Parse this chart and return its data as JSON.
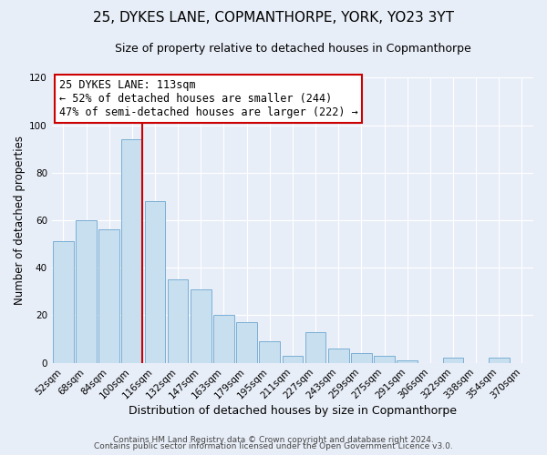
{
  "title": "25, DYKES LANE, COPMANTHORPE, YORK, YO23 3YT",
  "subtitle": "Size of property relative to detached houses in Copmanthorpe",
  "xlabel": "Distribution of detached houses by size in Copmanthorpe",
  "ylabel": "Number of detached properties",
  "bar_color": "#c8dff0",
  "bar_edge_color": "#7bafd4",
  "categories": [
    "52sqm",
    "68sqm",
    "84sqm",
    "100sqm",
    "116sqm",
    "132sqm",
    "147sqm",
    "163sqm",
    "179sqm",
    "195sqm",
    "211sqm",
    "227sqm",
    "243sqm",
    "259sqm",
    "275sqm",
    "291sqm",
    "306sqm",
    "322sqm",
    "338sqm",
    "354sqm",
    "370sqm"
  ],
  "values": [
    51,
    60,
    56,
    94,
    68,
    35,
    31,
    20,
    17,
    9,
    3,
    13,
    6,
    4,
    3,
    1,
    0,
    2,
    0,
    2,
    0
  ],
  "ylim": [
    0,
    120
  ],
  "yticks": [
    0,
    20,
    40,
    60,
    80,
    100,
    120
  ],
  "vline_color": "#cc0000",
  "annotation_line1": "25 DYKES LANE: 113sqm",
  "annotation_line2": "← 52% of detached houses are smaller (244)",
  "annotation_line3": "47% of semi-detached houses are larger (222) →",
  "footer1": "Contains HM Land Registry data © Crown copyright and database right 2024.",
  "footer2": "Contains public sector information licensed under the Open Government Licence v3.0.",
  "bg_color": "#e8eef8",
  "plot_bg_color": "#e8eef8",
  "grid_color": "#ffffff",
  "title_fontsize": 11,
  "subtitle_fontsize": 9,
  "xlabel_fontsize": 9,
  "ylabel_fontsize": 8.5,
  "tick_fontsize": 7.5,
  "annotation_fontsize": 8.5,
  "footer_fontsize": 6.5
}
